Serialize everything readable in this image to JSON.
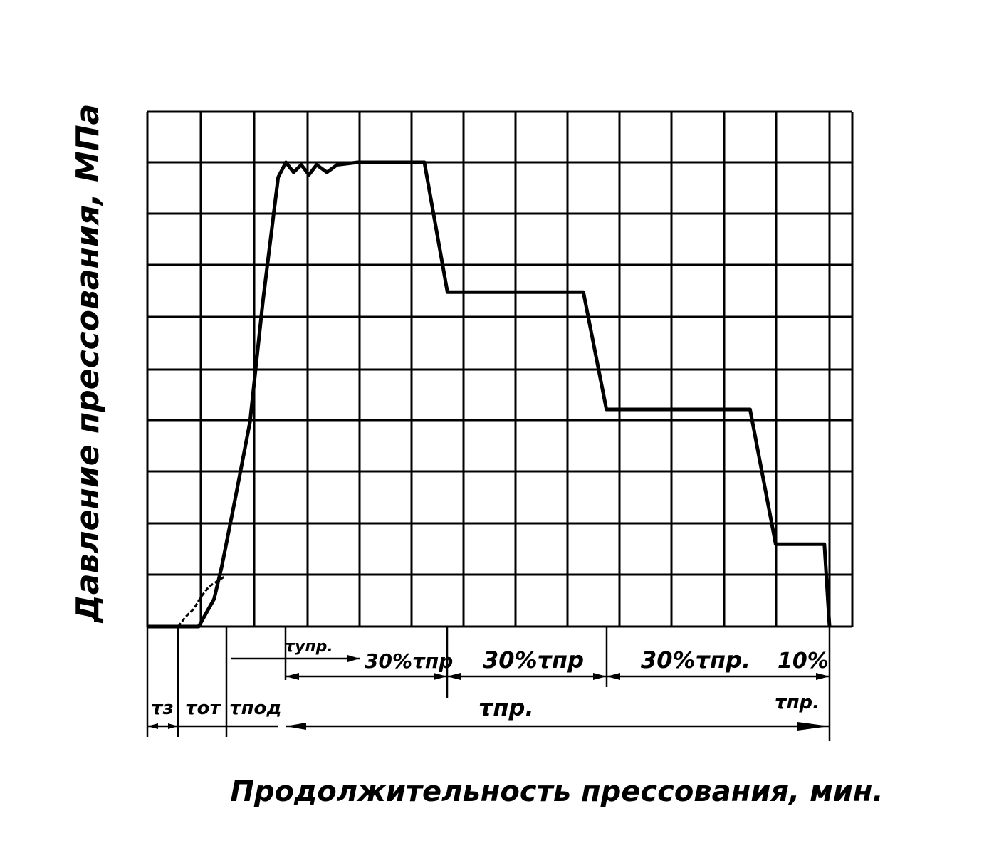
{
  "chart_data": {
    "type": "line",
    "title": "",
    "ylabel": "Давление прессования, МПа",
    "xlabel": "Продолжительность прессования, мин.",
    "grid": true,
    "xlim": [
      0,
      13.3
    ],
    "ylim": [
      0,
      10
    ],
    "series": [
      {
        "name": "",
        "points": [
          [
            0,
            0
          ],
          [
            0.6,
            0
          ],
          [
            1.0,
            0
          ],
          [
            1.3,
            0.55
          ],
          [
            1.45,
            1.2
          ],
          [
            1.7,
            2.5
          ],
          [
            2.0,
            4.1
          ],
          [
            2.25,
            6.5
          ],
          [
            2.55,
            9.0
          ],
          [
            2.7,
            9.3
          ],
          [
            2.85,
            9.1
          ],
          [
            3.0,
            9.25
          ],
          [
            3.15,
            9.05
          ],
          [
            3.3,
            9.25
          ],
          [
            3.5,
            9.1
          ],
          [
            3.7,
            9.25
          ],
          [
            4.1,
            9.3
          ],
          [
            4.3,
            9.3
          ],
          [
            5.4,
            9.3
          ],
          [
            5.85,
            6.7
          ],
          [
            8.5,
            6.7
          ],
          [
            8.95,
            4.35
          ],
          [
            11.75,
            4.35
          ],
          [
            12.25,
            1.65
          ],
          [
            13.2,
            1.65
          ],
          [
            13.3,
            0
          ]
        ]
      },
      {
        "name": "",
        "points": [
          [
            0.6,
            0
          ],
          [
            0.75,
            0.2
          ],
          [
            0.9,
            0.35
          ],
          [
            1.05,
            0.6
          ],
          [
            1.2,
            0.8
          ],
          [
            1.35,
            0.9
          ],
          [
            1.5,
            1.0
          ]
        ]
      }
    ],
    "annotations": {
      "tau_z": "τз",
      "tau_ot": "τот",
      "tau_pod": "τпод",
      "tau_upr": "τупр.",
      "pct1": "30%τпр",
      "pct2": "30%τпр",
      "pct3": "30%τпр.",
      "pct4": "10%",
      "tau_pr_total": "τпр.",
      "tau_pr_right": "τпр."
    }
  }
}
